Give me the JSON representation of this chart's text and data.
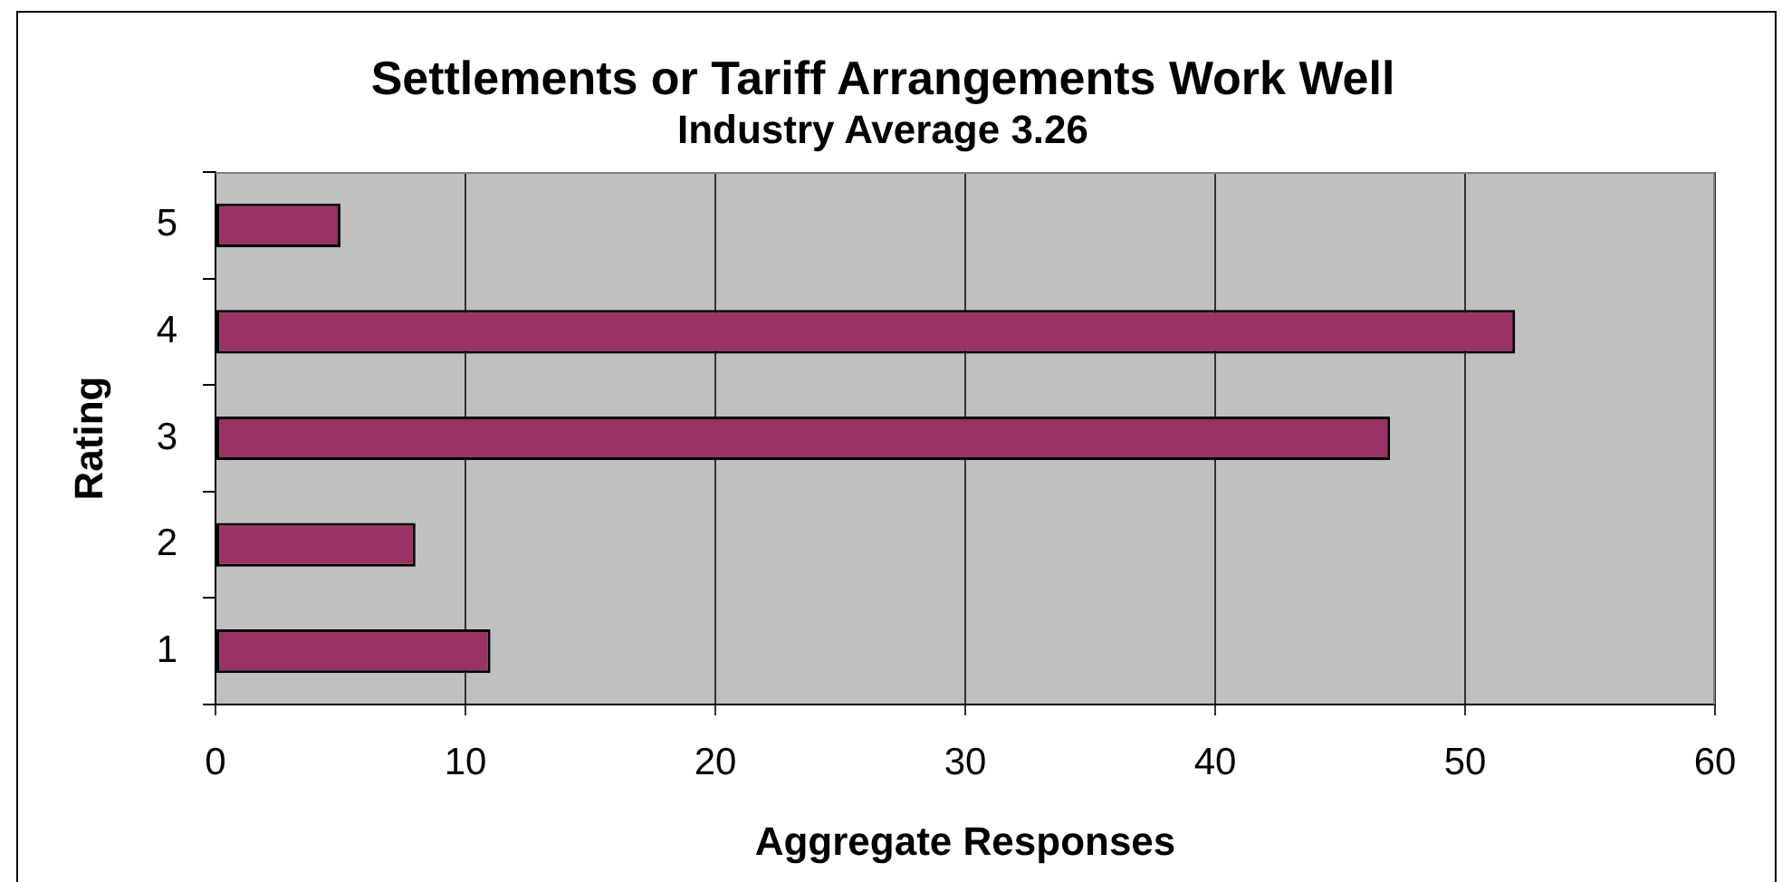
{
  "chart_data": {
    "type": "bar",
    "orientation": "horizontal",
    "title": "Settlements or Tariff Arrangements Work Well",
    "subtitle": "Industry Average 3.26",
    "xlabel": "Aggregate Responses",
    "ylabel": "Rating",
    "categories": [
      "5",
      "4",
      "3",
      "2",
      "1"
    ],
    "values": [
      5,
      52,
      47,
      8,
      11
    ],
    "color": "#993366",
    "xlim": [
      0,
      60
    ],
    "xticks": [
      0,
      10,
      20,
      30,
      40,
      50,
      60
    ],
    "grid": "x",
    "legend": false
  }
}
